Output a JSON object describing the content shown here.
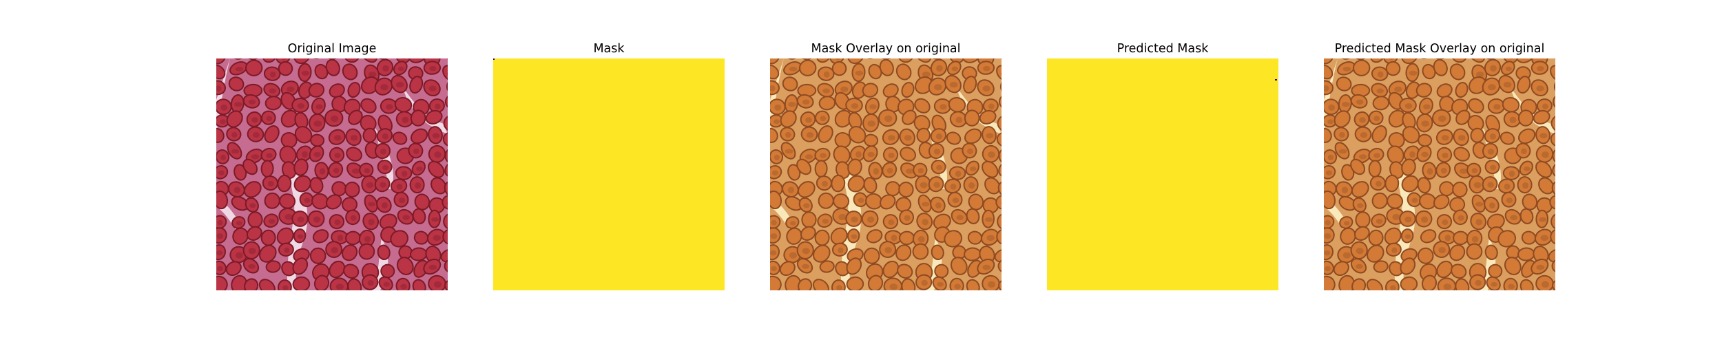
{
  "figure": {
    "panels": [
      {
        "title": "Original Image",
        "kind": "tissue",
        "palette": "original"
      },
      {
        "title": "Mask",
        "kind": "mask"
      },
      {
        "title": "Mask Overlay on original",
        "kind": "tissue",
        "palette": "overlay"
      },
      {
        "title": "Predicted Mask",
        "kind": "mask"
      },
      {
        "title": "Predicted Mask Overlay on original",
        "kind": "tissue",
        "palette": "overlay"
      }
    ],
    "colors": {
      "mask_yellow": "#fde725",
      "mask_dark": "#440154",
      "original_bg": "#f4e6ee",
      "original_membrane": "#c56c90",
      "original_cell": "#ba3445",
      "original_cell_dark": "#7c1a28",
      "overlay_bg": "#fbefc4",
      "overlay_membrane": "#dba060",
      "overlay_cell": "#d27a36",
      "overlay_cell_dark": "#8e4a22"
    }
  }
}
